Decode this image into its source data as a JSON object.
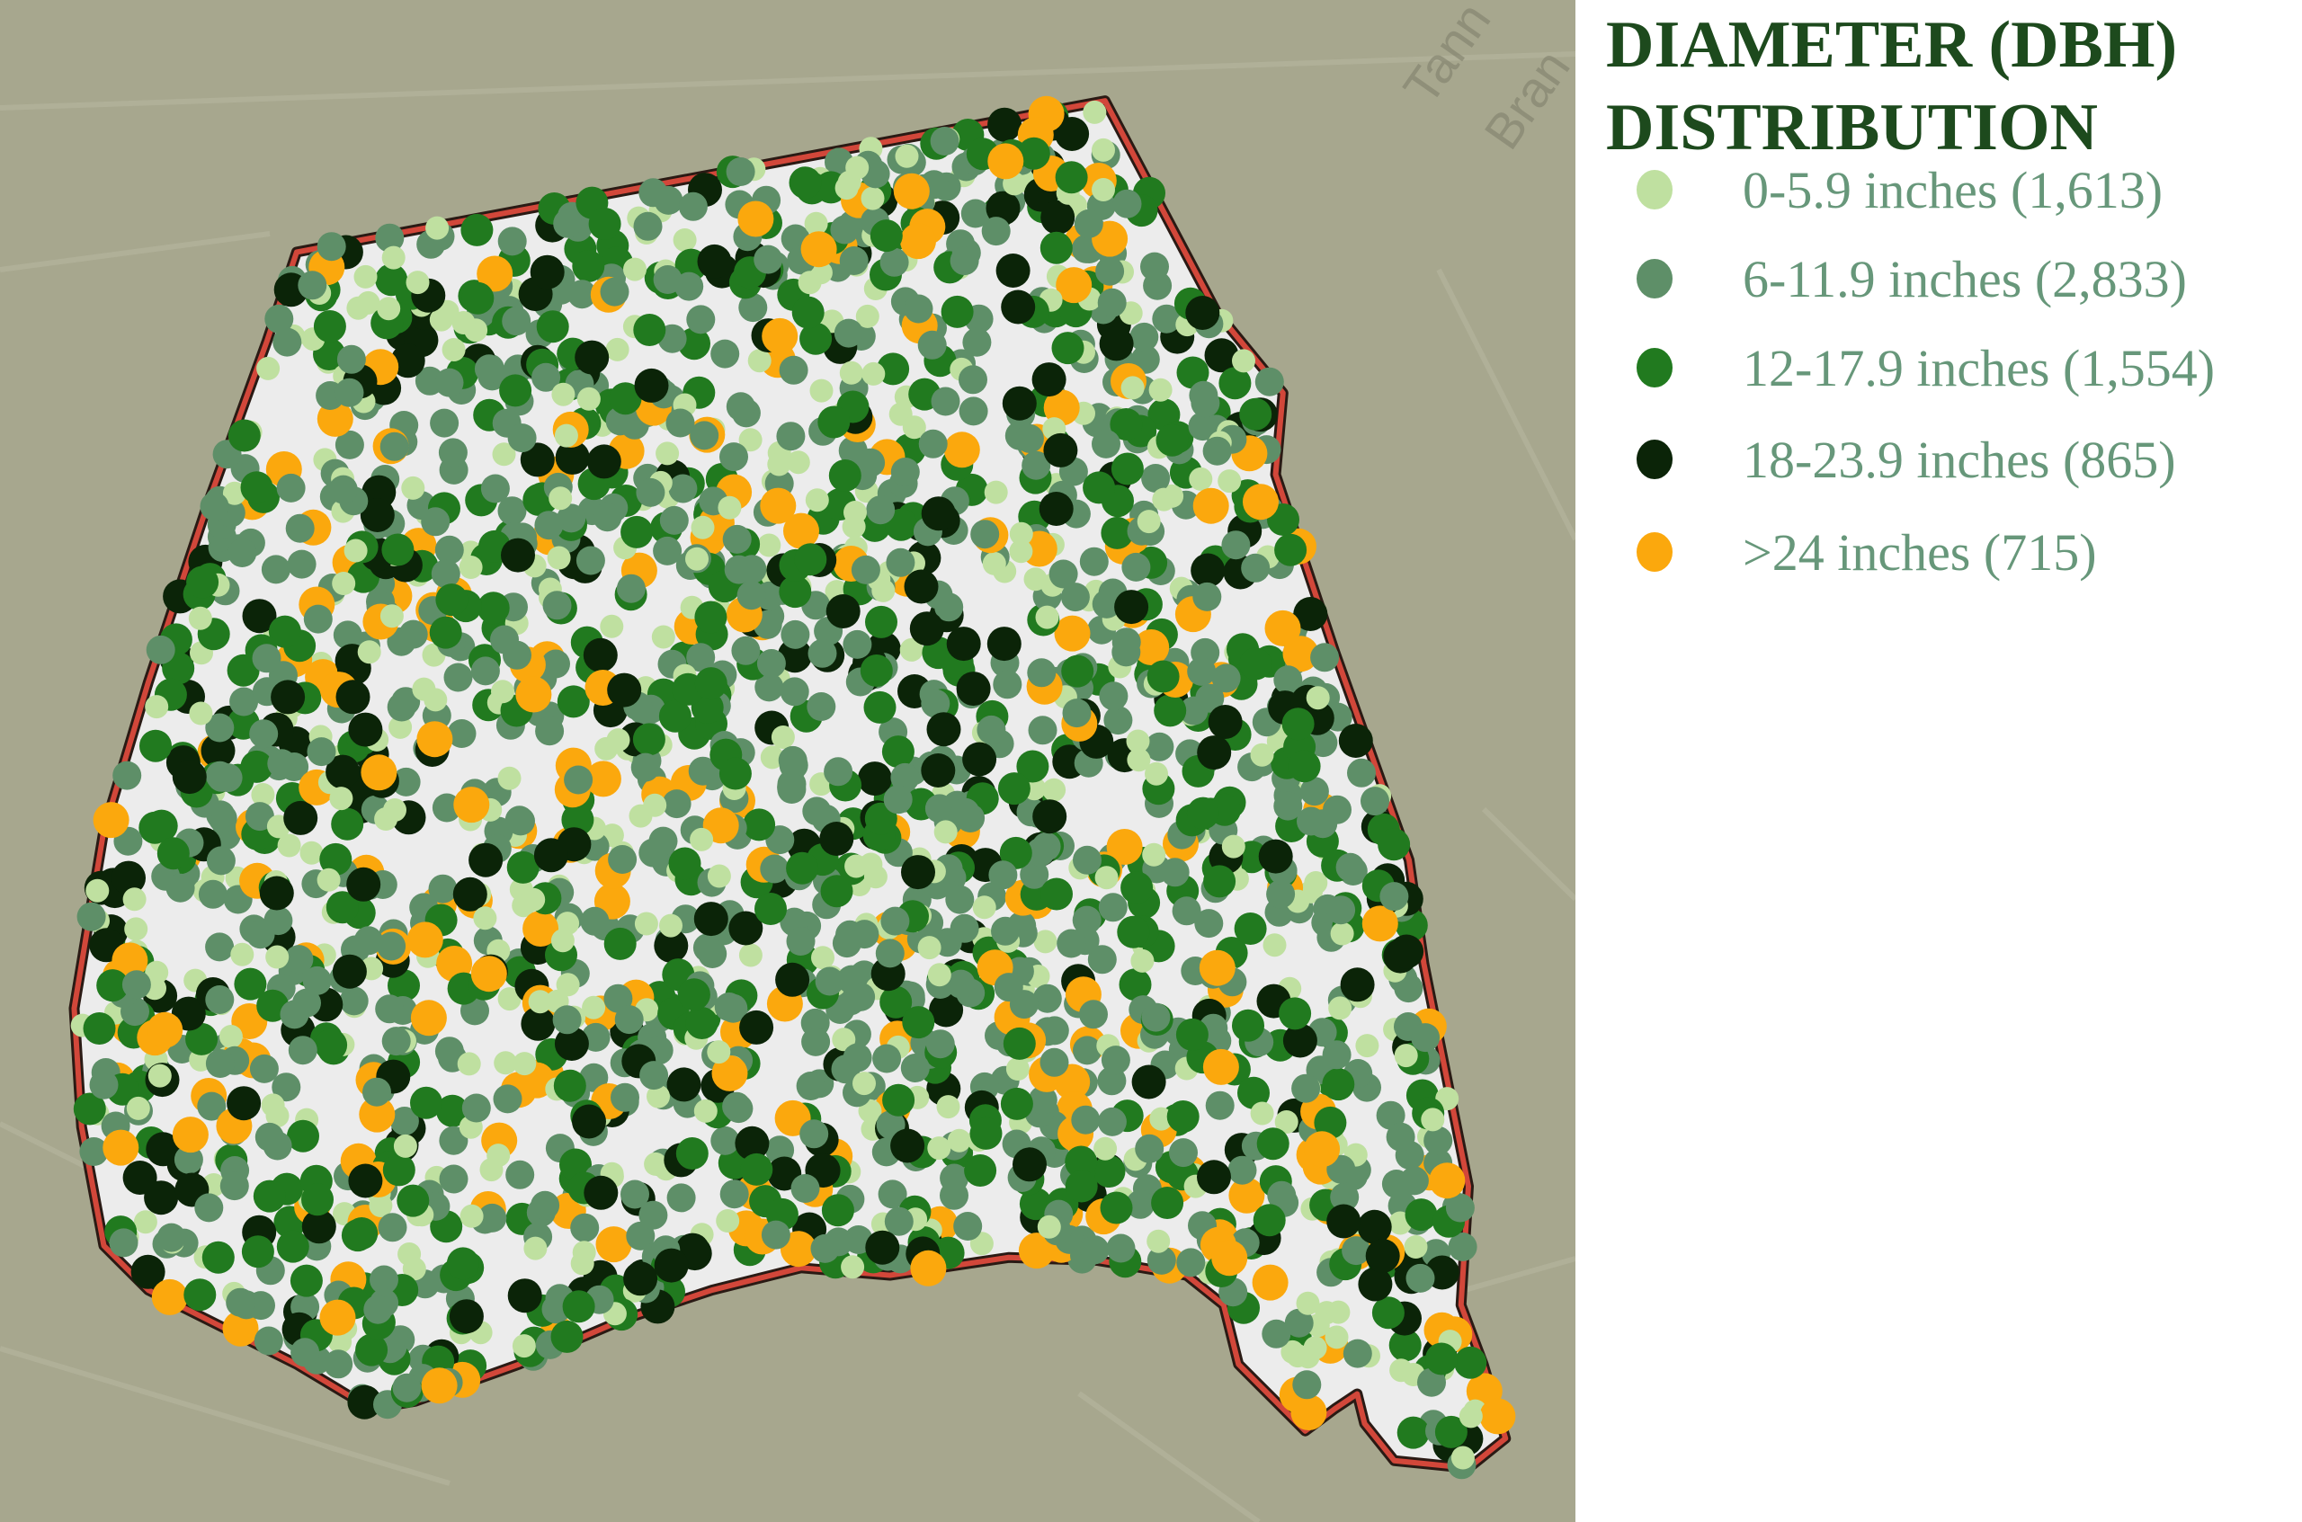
{
  "legend": {
    "title_line1": "DIAMETER (DBH)",
    "title_line2": "DISTRIBUTION",
    "title_color": "#1d4a1d",
    "items": [
      {
        "label": "0-5.9 inches (1,613)",
        "range": "0-5.9 inches",
        "count": 1613,
        "color": "#bfe0a0"
      },
      {
        "label": "6-11.9 inches (2,833)",
        "range": "6-11.9 inches",
        "count": 2833,
        "color": "#5e8f68"
      },
      {
        "label": "12-17.9 inches (1,554)",
        "range": "12-17.9 inches",
        "count": 1554,
        "color": "#217a1f"
      },
      {
        "label": "18-23.9 inches (865)",
        "range": "18-23.9 inches",
        "count": 865,
        "color": "#0b2408"
      },
      {
        "label": ">24 inches (715)",
        "range": ">24 inches",
        "count": 715,
        "color": "#fba80d"
      }
    ]
  },
  "map": {
    "basemap_color": "#a7a78e",
    "study_area_fill": "#ececec",
    "boundary_color": "#d2473a",
    "street_labels": [
      "Tann",
      "Bran"
    ]
  }
}
